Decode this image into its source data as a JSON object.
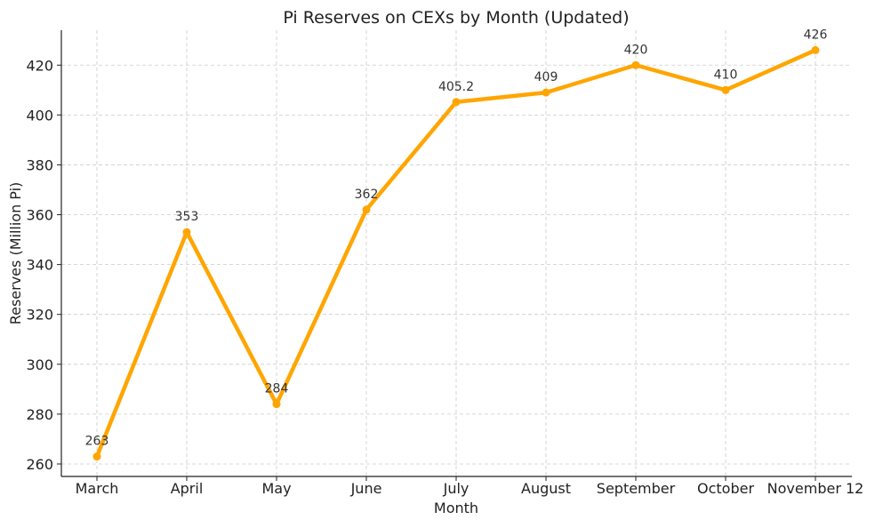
{
  "chart_data": {
    "type": "line",
    "title": "Pi Reserves on CEXs by Month (Updated)",
    "xlabel": "Month",
    "ylabel": "Reserves (Million Pi)",
    "categories": [
      "March",
      "April",
      "May",
      "June",
      "July",
      "August",
      "September",
      "October",
      "November 12"
    ],
    "values": [
      263,
      353,
      284,
      362,
      405.2,
      409,
      420,
      410,
      426
    ],
    "data_labels": [
      "263",
      "353",
      "284",
      "362",
      "405.2",
      "409",
      "420",
      "410",
      "426"
    ],
    "yticks": [
      260,
      280,
      300,
      320,
      340,
      360,
      380,
      400,
      420
    ],
    "ylim": [
      255,
      434
    ],
    "grid": true,
    "grid_style": "dashed",
    "markers": true,
    "colors": {
      "line": "#FFA500",
      "grid": "#cccccc",
      "text": "#222222"
    }
  }
}
